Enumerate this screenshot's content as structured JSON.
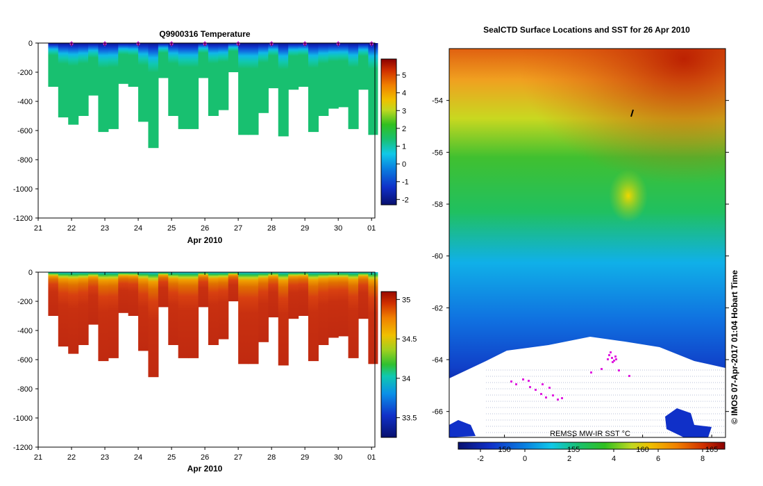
{
  "chart_data": [
    {
      "type": "heatmap",
      "title": "Q9900316  Temperature",
      "xlabel": "Apr 2010",
      "ylabel": "",
      "x_tick_labels": [
        "21",
        "22",
        "23",
        "24",
        "25",
        "26",
        "27",
        "28",
        "29",
        "30",
        "01"
      ],
      "y_tick_values": [
        0,
        -200,
        -400,
        -600,
        -800,
        -1000,
        -1200
      ],
      "ylim": [
        -1200,
        0
      ],
      "xlim": [
        21,
        31.1
      ],
      "profile_days": [
        21.3,
        21.6,
        21.9,
        22.2,
        22.5,
        22.8,
        23.1,
        23.4,
        23.7,
        24.0,
        24.3,
        24.6,
        24.9,
        25.2,
        25.5,
        25.8,
        26.1,
        26.4,
        26.7,
        27.0,
        27.3,
        27.6,
        27.9,
        28.2,
        28.5,
        28.8,
        29.1,
        29.4,
        29.7,
        30.0,
        30.3,
        30.6,
        30.9
      ],
      "profile_depths": [
        300,
        510,
        560,
        500,
        360,
        610,
        590,
        280,
        300,
        540,
        720,
        240,
        500,
        590,
        590,
        240,
        500,
        460,
        200,
        630,
        630,
        480,
        310,
        640,
        320,
        300,
        610,
        500,
        450,
        440,
        590,
        320,
        630
      ],
      "surface_markers": [
        22,
        23,
        24,
        25,
        26,
        27,
        28,
        29,
        30,
        31
      ],
      "colorbar": {
        "min": -2.3,
        "max": 5.9,
        "ticks": [
          "5",
          "4",
          "3",
          "2",
          "1",
          "0",
          "-1",
          "-2"
        ],
        "tick_values": [
          5,
          4,
          3,
          2,
          1,
          0,
          -1,
          -2
        ]
      }
    },
    {
      "type": "heatmap",
      "title": "",
      "xlabel": "Apr 2010",
      "ylabel": "",
      "x_tick_labels": [
        "21",
        "22",
        "23",
        "24",
        "25",
        "26",
        "27",
        "28",
        "29",
        "30",
        "01"
      ],
      "y_tick_values": [
        0,
        -200,
        -400,
        -600,
        -800,
        -1000,
        -1200
      ],
      "ylim": [
        -1200,
        0
      ],
      "xlim": [
        21,
        31.1
      ],
      "colorbar": {
        "min": 33.25,
        "max": 35.1,
        "ticks": [
          "35",
          "34.5",
          "34",
          "33.5"
        ],
        "tick_values": [
          35,
          34.5,
          34,
          33.5
        ]
      }
    },
    {
      "type": "heatmap",
      "title": "SealCTD Surface Locations and SST for 26 Apr 2010",
      "y_tick_labels": [
        "-54",
        "-56",
        "-58",
        "-60",
        "-62",
        "-64",
        "-66"
      ],
      "y_tick_values": [
        -54,
        -56,
        -58,
        -60,
        -62,
        -64,
        -66
      ],
      "ylim": [
        -67,
        -52
      ],
      "x_tick_labels": [
        "150",
        "155",
        "160",
        "165"
      ],
      "x_tick_values": [
        150,
        155,
        160,
        165
      ],
      "xlim": [
        146,
        166
      ],
      "colorbar": {
        "min": -3,
        "max": 9,
        "ticks": [
          "-2",
          "0",
          "2",
          "4",
          "6",
          "8"
        ],
        "tick_values": [
          -2,
          0,
          2,
          4,
          6,
          8
        ]
      },
      "product_label": "REMSS MW-IR SST °C"
    }
  ],
  "credit": "© IMOS 07-Apr-2017 01:04 Hobart Time"
}
